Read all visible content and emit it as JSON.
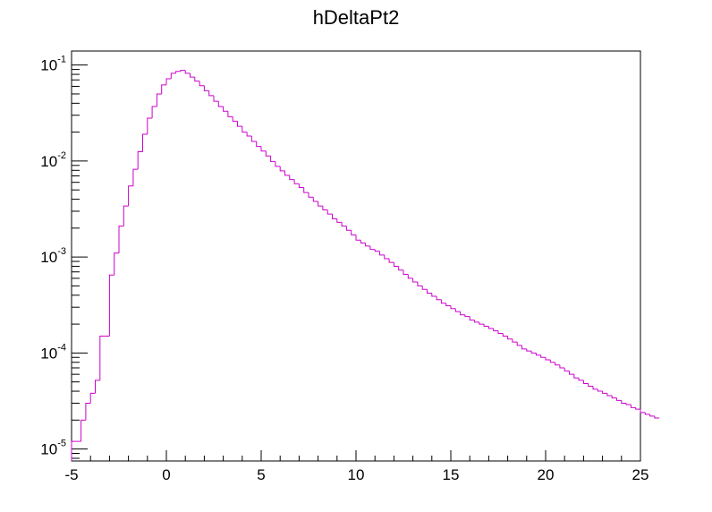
{
  "chart_data": {
    "type": "histogram",
    "title": "hDeltaPt2",
    "xlabel": "",
    "ylabel": "",
    "xlim": [
      -5,
      25
    ],
    "ylim": [
      7.5e-06,
      0.14
    ],
    "y_scale": "log",
    "grid": false,
    "line_color": "#cc00cc",
    "x_ticks": [
      -5,
      0,
      5,
      10,
      15,
      20,
      25
    ],
    "y_ticks": [
      {
        "value": 1e-05,
        "base": "10",
        "exp": "-5"
      },
      {
        "value": 0.0001,
        "base": "10",
        "exp": "-4"
      },
      {
        "value": 0.001,
        "base": "10",
        "exp": "-3"
      },
      {
        "value": 0.01,
        "base": "10",
        "exp": "-2"
      },
      {
        "value": 0.1,
        "base": "10",
        "exp": "-1"
      }
    ],
    "bin_edges_start": -5,
    "bin_width": 0.25,
    "values": [
      1.2e-05,
      1.2e-05,
      2e-05,
      3e-05,
      3.8e-05,
      5.2e-05,
      0.00015,
      0.00015,
      0.00065,
      0.0011,
      0.0021,
      0.0034,
      0.0055,
      0.0082,
      0.0125,
      0.019,
      0.028,
      0.037,
      0.05,
      0.062,
      0.072,
      0.082,
      0.086,
      0.088,
      0.082,
      0.075,
      0.068,
      0.061,
      0.054,
      0.048,
      0.042,
      0.037,
      0.033,
      0.029,
      0.026,
      0.023,
      0.02,
      0.0182,
      0.016,
      0.0142,
      0.0127,
      0.0113,
      0.0099,
      0.0088,
      0.0079,
      0.0071,
      0.0064,
      0.0058,
      0.0053,
      0.0047,
      0.0042,
      0.0038,
      0.0034,
      0.0031,
      0.0028,
      0.0025,
      0.0023,
      0.0021,
      0.0019,
      0.0017,
      0.0015,
      0.0014,
      0.0013,
      0.0012,
      0.00115,
      0.00105,
      0.00096,
      0.00088,
      0.0008,
      0.00073,
      0.00066,
      0.0006,
      0.00055,
      0.0005,
      0.00046,
      0.00042,
      0.00039,
      0.00036,
      0.00033,
      0.00031,
      0.00029,
      0.00027,
      0.00025,
      0.00024,
      0.00022,
      0.00021,
      0.0002,
      0.00019,
      0.00018,
      0.00017,
      0.00016,
      0.00015,
      0.00014,
      0.00013,
      0.00012,
      0.00011,
      0.000105,
      0.0001,
      9.5e-05,
      9e-05,
      8.5e-05,
      8e-05,
      7.5e-05,
      7e-05,
      6.5e-05,
      6e-05,
      5.5e-05,
      5.2e-05,
      4.8e-05,
      4.5e-05,
      4.2e-05,
      4e-05,
      3.8e-05,
      3.6e-05,
      3.4e-05,
      3.2e-05,
      3e-05,
      2.9e-05,
      2.7e-05,
      2.6e-05,
      2.4e-05,
      2.3e-05,
      2.2e-05,
      2.1e-05
    ]
  }
}
